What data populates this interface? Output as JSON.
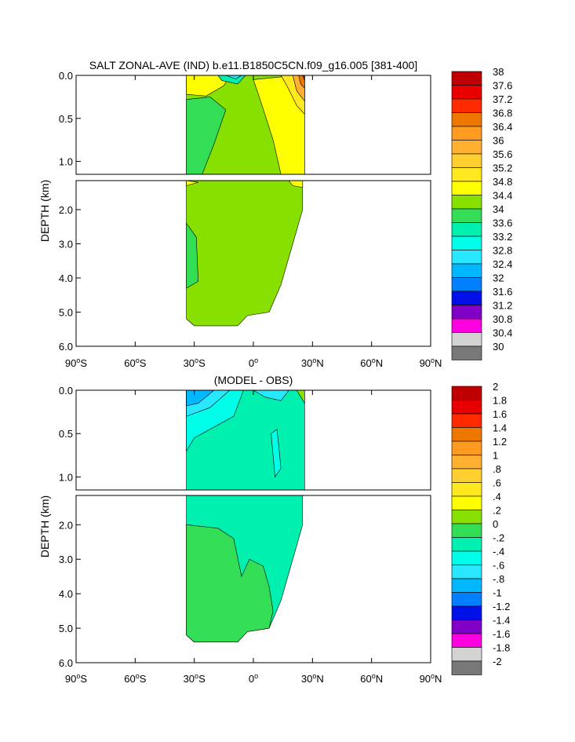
{
  "chart_data": [
    {
      "type": "heatmap",
      "title": "SALT ZONAL-AVE (IND) b.e11.B1850C5CN.f09_g16.005 [381-400]",
      "ylabel": "DEPTH (km)",
      "xlabel": "",
      "xlim": [
        -90,
        90
      ],
      "x_ticks": [
        -90,
        -60,
        -30,
        0,
        30,
        60,
        90
      ],
      "x_tick_labels": [
        "90°S",
        "60°S",
        "30°S",
        "0°",
        "30°N",
        "60°N",
        "90°N"
      ],
      "upper_panel": {
        "ylim": [
          0,
          1.15
        ],
        "y_ticks": [
          0,
          0.5,
          1.0
        ],
        "y_tick_labels": [
          "0.0",
          "0.5",
          "1.0"
        ]
      },
      "lower_panel": {
        "ylim": [
          1.15,
          6.0
        ],
        "y_ticks": [
          2,
          3,
          4,
          5,
          6
        ],
        "y_tick_labels": [
          "2.0",
          "3.0",
          "4.0",
          "5.0",
          "6.0"
        ]
      },
      "colorbar": {
        "levels": [
          "38",
          "37.6",
          "37.2",
          "36.8",
          "36.4",
          "36",
          "35.6",
          "35.2",
          "34.8",
          "34.4",
          "34",
          "33.6",
          "33.2",
          "32.8",
          "32.4",
          "32",
          "31.6",
          "31.2",
          "30.8",
          "30.4",
          "30"
        ],
        "colors": [
          "#c00000",
          "#e80000",
          "#ff2a00",
          "#ee7700",
          "#ff9a20",
          "#ffb030",
          "#ffcf30",
          "#ffe820",
          "#ffff00",
          "#88e000",
          "#33dd55",
          "#00f0b0",
          "#00ffe8",
          "#28e8ff",
          "#00b8ff",
          "#0080ff",
          "#0010e8",
          "#8000c8",
          "#ff00e0",
          "#d3d3d3",
          "#787878"
        ]
      }
    },
    {
      "type": "heatmap",
      "title": "(MODEL - OBS)",
      "ylabel": "DEPTH (km)",
      "xlabel": "",
      "xlim": [
        -90,
        90
      ],
      "x_ticks": [
        -90,
        -60,
        -30,
        0,
        30,
        60,
        90
      ],
      "x_tick_labels": [
        "90°S",
        "60°S",
        "30°S",
        "0°",
        "30°N",
        "60°N",
        "90°N"
      ],
      "upper_panel": {
        "ylim": [
          0,
          1.15
        ],
        "y_ticks": [
          0,
          0.5,
          1.0
        ],
        "y_tick_labels": [
          "0.0",
          "0.5",
          "1.0"
        ]
      },
      "lower_panel": {
        "ylim": [
          1.15,
          6.0
        ],
        "y_ticks": [
          2,
          3,
          4,
          5,
          6
        ],
        "y_tick_labels": [
          "2.0",
          "3.0",
          "4.0",
          "5.0",
          "6.0"
        ]
      },
      "colorbar": {
        "levels": [
          "2",
          "1.8",
          "1.6",
          "1.4",
          "1.2",
          "1",
          ".8",
          ".6",
          ".4",
          ".2",
          "0",
          "-.2",
          "-.4",
          "-.6",
          "-.8",
          "-1",
          "-1.2",
          "-1.4",
          "-1.6",
          "-1.8",
          "-2"
        ],
        "colors": [
          "#c00000",
          "#e80000",
          "#ff2a00",
          "#ee7700",
          "#ff9a20",
          "#ffb030",
          "#ffcf30",
          "#ffe820",
          "#ffff00",
          "#88e000",
          "#33dd55",
          "#00f0b0",
          "#00ffe8",
          "#28e8ff",
          "#00b8ff",
          "#0080ff",
          "#0010e8",
          "#8000c8",
          "#ff00e0",
          "#d3d3d3",
          "#787878"
        ]
      }
    }
  ]
}
